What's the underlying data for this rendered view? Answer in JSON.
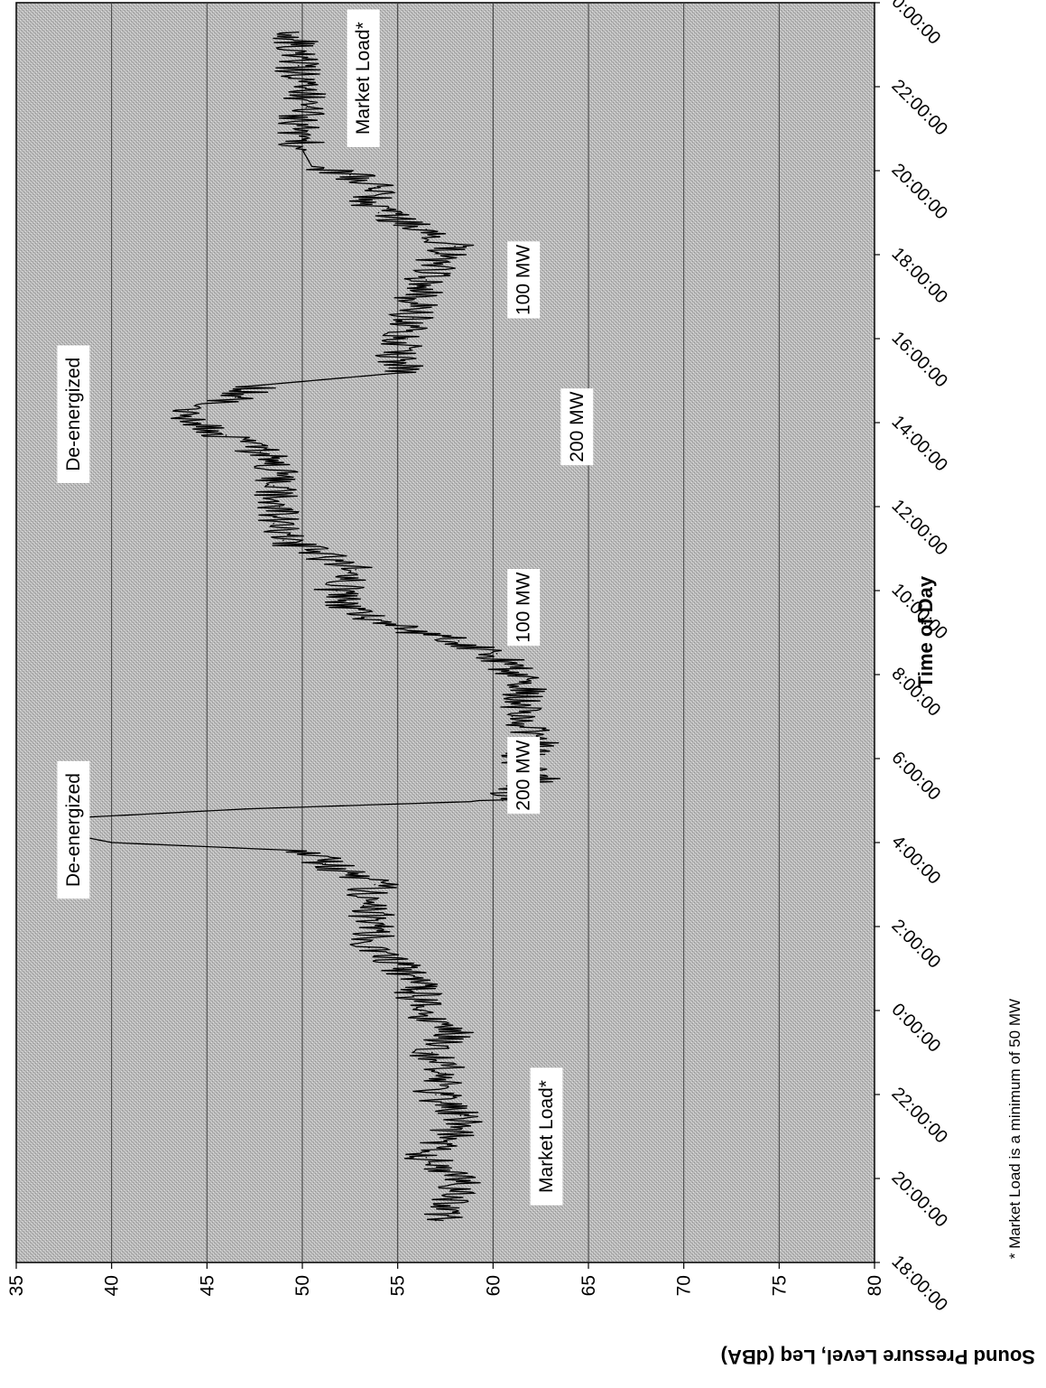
{
  "chart_data": {
    "type": "line",
    "xlabel": "Time of Day",
    "ylabel": "Sound Pressure Level, Leq (dBA)",
    "ylim": [
      35,
      80
    ],
    "yticks": [
      "35",
      "40",
      "45",
      "50",
      "55",
      "60",
      "65",
      "70",
      "75",
      "80"
    ],
    "xticks": [
      "18:00:00",
      "20:00:00",
      "22:00:00",
      "0:00:00",
      "2:00:00",
      "4:00:00",
      "6:00:00",
      "8:00:00",
      "10:00:00",
      "12:00:00",
      "14:00:00",
      "16:00:00",
      "18:00:00",
      "20:00:00",
      "22:00:00",
      "0:00:00"
    ],
    "xlim_hours": [
      0,
      30
    ],
    "grid": true,
    "legend": "none",
    "footnote": "* Market Load is a minimum of 50 MW",
    "annotations": [
      {
        "text": "Market Load*",
        "x_hours": 3.0,
        "y": 62.8
      },
      {
        "text": "200 MW",
        "x_hours": 11.6,
        "y": 61.6
      },
      {
        "text": "100 MW",
        "x_hours": 15.6,
        "y": 61.6
      },
      {
        "text": "200 MW",
        "x_hours": 19.9,
        "y": 64.4
      },
      {
        "text": "100 MW",
        "x_hours": 23.4,
        "y": 61.6
      },
      {
        "text": "Market Load*",
        "x_hours": 28.2,
        "y": 53.2
      },
      {
        "text": "De-energized",
        "x_hours": 10.3,
        "y": 38.0
      },
      {
        "text": "De-energized",
        "x_hours": 20.2,
        "y": 38.0
      }
    ],
    "series": [
      {
        "points": [
          [
            1.0,
            57.0
          ],
          [
            1.5,
            57.8
          ],
          [
            2.0,
            58.2
          ],
          [
            2.5,
            56.5
          ],
          [
            3.0,
            57.8
          ],
          [
            3.5,
            58.3
          ],
          [
            4.0,
            57.0
          ],
          [
            4.5,
            57.5
          ],
          [
            5.0,
            56.8
          ],
          [
            5.5,
            57.8
          ],
          [
            6.0,
            56.2
          ],
          [
            6.5,
            56.0
          ],
          [
            7.0,
            55.3
          ],
          [
            7.5,
            53.5
          ],
          [
            8.0,
            54.0
          ],
          [
            8.5,
            53.2
          ],
          [
            9.0,
            53.8
          ],
          [
            9.5,
            51.2
          ],
          [
            9.8,
            50.2
          ],
          [
            10.0,
            40.0
          ],
          [
            10.2,
            37.8
          ],
          [
            10.4,
            37.5
          ],
          [
            10.6,
            38.5
          ],
          [
            10.8,
            47.0
          ],
          [
            11.0,
            60.5
          ],
          [
            11.2,
            61.0
          ],
          [
            11.5,
            62.5
          ],
          [
            12.0,
            61.5
          ],
          [
            12.5,
            62.5
          ],
          [
            13.0,
            61.0
          ],
          [
            13.5,
            61.8
          ],
          [
            14.0,
            61.2
          ],
          [
            14.5,
            60.2
          ],
          [
            14.8,
            58.2
          ],
          [
            15.0,
            56.0
          ],
          [
            15.3,
            54.0
          ],
          [
            15.6,
            52.3
          ],
          [
            16.0,
            51.8
          ],
          [
            16.5,
            52.8
          ],
          [
            16.8,
            51.2
          ],
          [
            17.2,
            49.0
          ],
          [
            17.6,
            48.5
          ],
          [
            18.0,
            48.8
          ],
          [
            18.5,
            48.5
          ],
          [
            19.0,
            48.6
          ],
          [
            19.3,
            47.8
          ],
          [
            19.7,
            46.0
          ],
          [
            20.0,
            44.5
          ],
          [
            20.3,
            44.0
          ],
          [
            20.6,
            46.5
          ],
          [
            20.9,
            48.0
          ],
          [
            21.2,
            55.5
          ],
          [
            21.6,
            55.0
          ],
          [
            22.0,
            55.5
          ],
          [
            22.5,
            55.8
          ],
          [
            23.0,
            56.0
          ],
          [
            23.4,
            56.5
          ],
          [
            23.8,
            57.0
          ],
          [
            24.2,
            58.0
          ],
          [
            24.6,
            56.5
          ],
          [
            25.0,
            54.0
          ],
          [
            25.3,
            53.5
          ],
          [
            25.6,
            53.8
          ],
          [
            25.9,
            52.5
          ],
          [
            26.1,
            50.5
          ],
          [
            26.5,
            50.0
          ],
          [
            27.0,
            49.8
          ],
          [
            27.5,
            50.2
          ],
          [
            28.0,
            50.0
          ],
          [
            28.5,
            49.8
          ],
          [
            29.0,
            49.7
          ],
          [
            29.3,
            49.8
          ]
        ]
      }
    ]
  }
}
